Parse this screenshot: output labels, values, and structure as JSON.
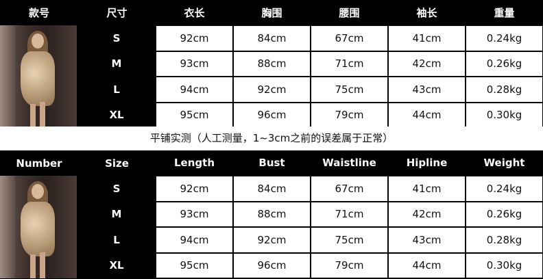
{
  "cn_table": {
    "headers": [
      "款号",
      "尺寸",
      "衣长",
      "胸围",
      "腰围",
      "袖长",
      "重量"
    ],
    "rows": [
      {
        "size": "S",
        "values": [
          "92cm",
          "84cm",
          "67cm",
          "41cm",
          "0.24kg"
        ]
      },
      {
        "size": "M",
        "values": [
          "93cm",
          "88cm",
          "71cm",
          "42cm",
          "0.26kg"
        ]
      },
      {
        "size": "L",
        "values": [
          "94cm",
          "92cm",
          "75cm",
          "43cm",
          "0.28kg"
        ]
      },
      {
        "size": "XL",
        "values": [
          "95cm",
          "96cm",
          "79cm",
          "44cm",
          "0.30kg"
        ]
      }
    ]
  },
  "note": "平铺实测（人工测量，1~3cm之前的误差属于正常）",
  "en_table": {
    "headers": [
      "Number",
      "Size",
      "Length",
      "Bust",
      "Waistline",
      "Hipline",
      "Weight"
    ],
    "rows": [
      {
        "size": "S",
        "values": [
          "92cm",
          "84cm",
          "67cm",
          "41cm",
          "0.24kg"
        ]
      },
      {
        "size": "M",
        "values": [
          "93cm",
          "88cm",
          "71cm",
          "42cm",
          "0.26kg"
        ]
      },
      {
        "size": "L",
        "values": [
          "94cm",
          "92cm",
          "75cm",
          "43cm",
          "0.28kg"
        ]
      },
      {
        "size": "XL",
        "values": [
          "95cm",
          "96cm",
          "79cm",
          "44cm",
          "0.30kg"
        ]
      }
    ]
  },
  "colors": {
    "header_bg": "#000000",
    "cell_bg": "#ffffff",
    "dress": "#c8ab88"
  }
}
